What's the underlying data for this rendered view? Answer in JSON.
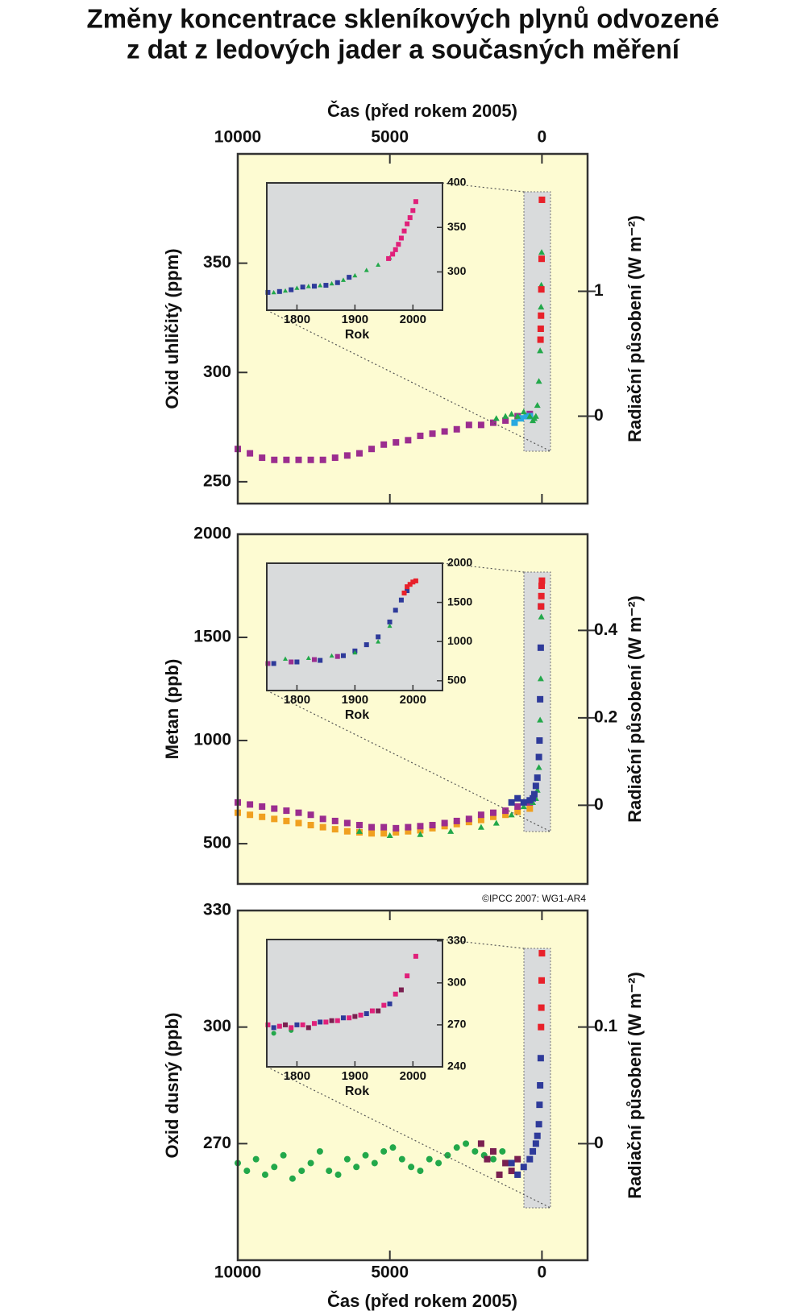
{
  "title": [
    "Změny koncentrace skleníkových plynů odvozené",
    "z dat z ledových jader a současných měření"
  ],
  "credit": "©IPCC 2007: WG1-AR4",
  "chart_data": [
    {
      "type": "scatter",
      "xlabel": "Čas (před rokem 2005)",
      "xlabel_position": "top",
      "ylabel": "Oxid uhličitý (ppm)",
      "y2label": "Radiační působení (W m⁻²)",
      "xlim": [
        10000,
        -1500
      ],
      "xticks": [
        10000,
        5000,
        0
      ],
      "ylim": [
        240,
        400
      ],
      "yticks": [
        250,
        300,
        350
      ],
      "y2lim": [
        -0.7,
        2.1
      ],
      "y2ticks": [
        0,
        1
      ],
      "series": [
        {
          "color": "#9b2d8f",
          "marker": "square",
          "x": [
            10000,
            9600,
            9200,
            8800,
            8400,
            8000,
            7600,
            7200,
            6800,
            6400,
            6000,
            5600,
            5200,
            4800,
            4400,
            4000,
            3600,
            3200,
            2800,
            2400,
            2000,
            1600,
            1200,
            800,
            400
          ],
          "values": [
            265,
            263,
            261,
            260,
            260,
            260,
            260,
            260,
            261,
            262,
            263,
            265,
            267,
            268,
            269,
            271,
            272,
            273,
            274,
            276,
            276,
            277,
            278,
            280,
            281
          ]
        },
        {
          "color": "#29a9e0",
          "marker": "square",
          "x": [
            900,
            700,
            500,
            400
          ],
          "values": [
            277,
            279,
            280,
            280
          ]
        },
        {
          "color": "#22a84a",
          "marker": "triangle",
          "x": [
            1500,
            1200,
            1000,
            800,
            600,
            400,
            300,
            250,
            200,
            150,
            100,
            60,
            40,
            30,
            20,
            10
          ],
          "values": [
            279,
            280,
            281,
            280,
            282,
            280,
            278,
            279,
            280,
            285,
            296,
            310,
            320,
            330,
            340,
            355
          ]
        },
        {
          "color": "#e8202a",
          "marker": "square",
          "x": [
            47,
            40,
            30,
            20,
            10,
            0
          ],
          "values": [
            315,
            320,
            326,
            338,
            352,
            379
          ]
        }
      ],
      "inset": {
        "xlabel": "Rok",
        "xlim": [
          1748,
          2051
        ],
        "xticks": [
          1800,
          1900,
          2000
        ],
        "ylim": [
          257,
          400
        ],
        "yticks": [
          300,
          350,
          400
        ],
        "series": [
          {
            "color": "#2e3a9a",
            "marker": "square",
            "x": [
              1750,
              1770,
              1790,
              1810,
              1830,
              1850,
              1870,
              1890
            ],
            "values": [
              277,
              278,
              280,
              283,
              284,
              285,
              288,
              294
            ]
          },
          {
            "color": "#22a84a",
            "marker": "triangle",
            "x": [
              1760,
              1780,
              1800,
              1820,
              1840,
              1860,
              1880,
              1900,
              1920,
              1940,
              1960
            ],
            "values": [
              277,
              279,
              282,
              284,
              285,
              287,
              291,
              296,
              302,
              308,
              316
            ]
          },
          {
            "color": "#e0207a",
            "marker": "square",
            "x": [
              1958,
              1965,
              1970,
              1975,
              1980,
              1985,
              1990,
              1995,
              2000,
              2005
            ],
            "values": [
              315,
              320,
              325,
              331,
              338,
              346,
              354,
              361,
              369,
              379
            ]
          }
        ]
      }
    },
    {
      "type": "scatter",
      "ylabel": "Metan (ppb)",
      "y2label": "Radiační působení (W m⁻²)",
      "xlim": [
        10000,
        -1500
      ],
      "ylim": [
        305,
        2000
      ],
      "yticks": [
        500,
        1000,
        1500,
        2000
      ],
      "y2lim": [
        -0.18,
        0.62
      ],
      "y2ticks": [
        0,
        0.2,
        0.4
      ],
      "series": [
        {
          "color": "#f0a020",
          "marker": "square",
          "x": [
            10000,
            9600,
            9200,
            8800,
            8400,
            8000,
            7600,
            7200,
            6800,
            6400,
            6000,
            5600,
            5200,
            4800,
            4400,
            4000,
            3600,
            3200,
            2800,
            2400,
            2000,
            1600,
            1200,
            800,
            400
          ],
          "values": [
            650,
            640,
            630,
            620,
            610,
            600,
            590,
            580,
            570,
            560,
            555,
            550,
            550,
            555,
            560,
            565,
            575,
            585,
            595,
            605,
            615,
            630,
            640,
            655,
            670
          ]
        },
        {
          "color": "#9b2d8f",
          "marker": "square",
          "x": [
            10000,
            9600,
            9200,
            8800,
            8400,
            8000,
            7600,
            7200,
            6800,
            6400,
            6000,
            5600,
            5200,
            4800,
            4400,
            4000,
            3600,
            3200,
            2800,
            2400,
            2000,
            1600,
            1200,
            800,
            400
          ],
          "values": [
            700,
            690,
            680,
            670,
            660,
            650,
            640,
            620,
            610,
            600,
            590,
            580,
            580,
            575,
            580,
            585,
            590,
            600,
            610,
            620,
            640,
            650,
            660,
            680,
            700
          ]
        },
        {
          "color": "#22a84a",
          "marker": "triangle",
          "x": [
            6000,
            5000,
            4000,
            3000,
            2000,
            1500,
            1000,
            600,
            300,
            200,
            150,
            100,
            60,
            40,
            20
          ],
          "values": [
            560,
            540,
            545,
            560,
            580,
            600,
            640,
            680,
            700,
            720,
            760,
            870,
            1100,
            1300,
            1600
          ]
        },
        {
          "color": "#2e3a9a",
          "marker": "square",
          "x": [
            1000,
            800,
            600,
            400,
            300,
            250,
            200,
            150,
            100,
            80,
            60,
            40,
            30
          ],
          "values": [
            700,
            720,
            700,
            710,
            720,
            740,
            780,
            820,
            920,
            1000,
            1200,
            1450,
            1650
          ]
        },
        {
          "color": "#e8202a",
          "marker": "square",
          "x": [
            30,
            20,
            10,
            0
          ],
          "values": [
            1650,
            1700,
            1750,
            1775
          ]
        }
      ],
      "inset": {
        "xlabel": "Rok",
        "xlim": [
          1748,
          2051
        ],
        "xticks": [
          1800,
          1900,
          2000
        ],
        "ylim": [
          375,
          2000
        ],
        "yticks": [
          500,
          1000,
          1500,
          2000
        ],
        "series": [
          {
            "color": "#9b2d8f",
            "marker": "square",
            "x": [
              1750,
              1790,
              1830,
              1870
            ],
            "values": [
              720,
              740,
              770,
              810
            ]
          },
          {
            "color": "#2e3a9a",
            "marker": "square",
            "x": [
              1760,
              1800,
              1840,
              1880,
              1900,
              1920,
              1940,
              1960,
              1970,
              1980,
              1990
            ],
            "values": [
              720,
              740,
              760,
              820,
              880,
              960,
              1060,
              1250,
              1400,
              1530,
              1650
            ]
          },
          {
            "color": "#22a84a",
            "marker": "triangle",
            "x": [
              1780,
              1820,
              1860,
              1900,
              1940,
              1960
            ],
            "values": [
              780,
              790,
              820,
              860,
              1000,
              1200
            ]
          },
          {
            "color": "#e8202a",
            "marker": "square",
            "x": [
              1985,
              1990,
              1995,
              2000,
              2005
            ],
            "values": [
              1620,
              1700,
              1730,
              1760,
              1775
            ]
          }
        ]
      }
    },
    {
      "type": "scatter",
      "xlabel": "Čas (před rokem 2005)",
      "xlabel_position": "bottom",
      "ylabel": "Oxid dusný (ppb)",
      "y2label": "Radiační působení (W m⁻²)",
      "xlim": [
        10000,
        -1500
      ],
      "xticks": [
        10000,
        5000,
        0
      ],
      "ylim": [
        240,
        330
      ],
      "yticks": [
        270,
        300,
        330
      ],
      "y2lim": [
        -0.1,
        0.2
      ],
      "y2ticks": [
        0,
        0.1
      ],
      "series": [
        {
          "color": "#22a84a",
          "marker": "circle",
          "x": [
            10000,
            9700,
            9400,
            9100,
            8800,
            8500,
            8200,
            7900,
            7600,
            7300,
            7000,
            6700,
            6400,
            6100,
            5800,
            5500,
            5200,
            4900,
            4600,
            4300,
            4000,
            3700,
            3400,
            3100,
            2800,
            2500,
            2200,
            1900,
            1600,
            1300
          ],
          "values": [
            265,
            263,
            266,
            262,
            264,
            267,
            261,
            263,
            265,
            268,
            263,
            262,
            266,
            264,
            267,
            265,
            268,
            269,
            266,
            264,
            263,
            266,
            265,
            267,
            269,
            270,
            268,
            267,
            266,
            268
          ]
        },
        {
          "color": "#7a2050",
          "marker": "square",
          "x": [
            2000,
            1800,
            1600,
            1400,
            1200,
            1000,
            800
          ],
          "values": [
            270,
            266,
            268,
            262,
            265,
            263,
            266
          ]
        },
        {
          "color": "#2e3a9a",
          "marker": "square",
          "x": [
            1000,
            800,
            600,
            400,
            300,
            200,
            150,
            100,
            80,
            60,
            40
          ],
          "values": [
            265,
            262,
            264,
            266,
            268,
            270,
            272,
            275,
            280,
            285,
            292
          ]
        },
        {
          "color": "#e8202a",
          "marker": "square",
          "x": [
            30,
            20,
            10,
            0
          ],
          "values": [
            300,
            305,
            312,
            319
          ]
        }
      ],
      "inset": {
        "xlabel": "Rok",
        "xlim": [
          1748,
          2051
        ],
        "xticks": [
          1800,
          1900,
          2000
        ],
        "ylim": [
          240,
          331
        ],
        "yticks": [
          240,
          270,
          300,
          330
        ],
        "series": [
          {
            "color": "#22a84a",
            "marker": "circle",
            "x": [
              1760,
              1790
            ],
            "values": [
              264,
              266
            ]
          },
          {
            "color": "#e0207a",
            "marker": "square",
            "x": [
              1750,
              1770,
              1790,
              1810,
              1830,
              1850,
              1870,
              1890,
              1910,
              1930,
              1950,
              1970,
              1990,
              2005
            ],
            "values": [
              270,
              269,
              268,
              270,
              271,
              272,
              273,
              275,
              277,
              280,
              284,
              292,
              305,
              319
            ]
          },
          {
            "color": "#2e3a9a",
            "marker": "square",
            "x": [
              1760,
              1800,
              1840,
              1880,
              1920,
              1960
            ],
            "values": [
              268,
              270,
              272,
              275,
              278,
              285
            ]
          },
          {
            "color": "#7a2050",
            "marker": "square",
            "x": [
              1780,
              1820,
              1860,
              1900,
              1940,
              1980
            ],
            "values": [
              270,
              268,
              273,
              276,
              280,
              295
            ]
          }
        ]
      }
    }
  ]
}
